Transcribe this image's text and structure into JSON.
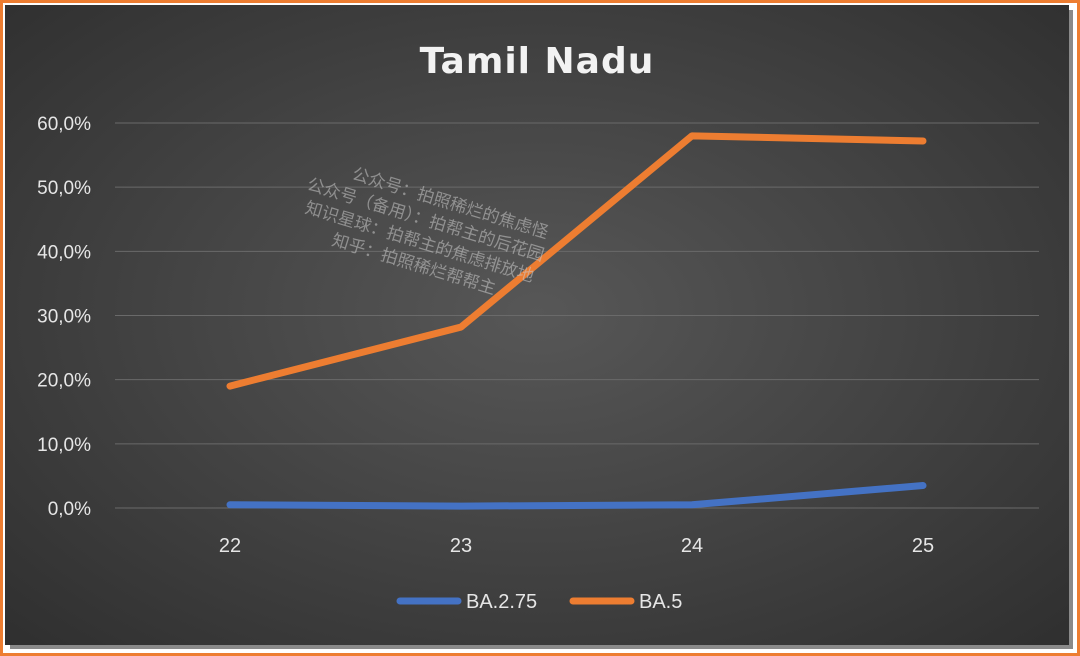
{
  "chart_data": {
    "type": "line",
    "title": "Tamil Nadu",
    "categories": [
      "22",
      "23",
      "24",
      "25"
    ],
    "series": [
      {
        "name": "BA.2.75",
        "values": [
          0.5,
          0.3,
          0.5,
          3.5
        ],
        "color": "#4472c4"
      },
      {
        "name": "BA.5",
        "values": [
          19.0,
          28.2,
          58.0,
          57.2
        ],
        "color": "#ed7d31"
      }
    ],
    "y_ticks": [
      "0,0%",
      "10,0%",
      "20,0%",
      "30,0%",
      "40,0%",
      "50,0%",
      "60,0%"
    ],
    "ylim": [
      0,
      60
    ],
    "grid": true,
    "legend_position": "bottom",
    "frame_color": "#ed7d31"
  },
  "watermark": [
    "公众号：拍照稀烂的焦虑怪",
    "公众号（备用）：拍帮主的后花园",
    "知识星球：拍帮主的焦虑排放地",
    "知乎：拍照稀烂帮帮主"
  ]
}
